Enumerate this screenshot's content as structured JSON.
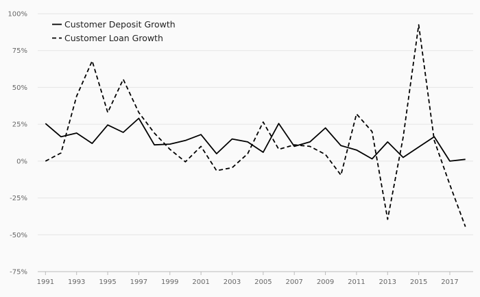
{
  "chart_data": {
    "type": "line",
    "title": "",
    "xlabel": "",
    "ylabel": "",
    "x": [
      1991,
      1992,
      1993,
      1994,
      1995,
      1996,
      1997,
      1998,
      1999,
      2000,
      2001,
      2002,
      2003,
      2004,
      2005,
      2006,
      2007,
      2008,
      2009,
      2010,
      2011,
      2012,
      2013,
      2014,
      2015,
      2016,
      2017,
      2018
    ],
    "xticks": [
      1991,
      1993,
      1995,
      1997,
      1999,
      2001,
      2003,
      2005,
      2007,
      2009,
      2011,
      2013,
      2015,
      2017
    ],
    "xlim": [
      1990.5,
      2018.5
    ],
    "ylim": [
      -75,
      100
    ],
    "yticks": [
      -75,
      -50,
      -25,
      0,
      25,
      50,
      75,
      100
    ],
    "ytick_labels": [
      "-75%",
      "-50%",
      "-25%",
      "0%",
      "25%",
      "50%",
      "75%",
      "100%"
    ],
    "grid": "horizontal",
    "legend_position": "top-left",
    "series": [
      {
        "name": "Customer Deposit Growth",
        "style": "solid",
        "color": "#000000",
        "values": [
          25.5,
          16.5,
          19,
          12,
          24.5,
          19.5,
          29,
          11,
          11.5,
          14,
          18,
          5,
          15,
          13,
          6,
          25.5,
          10,
          13,
          22.5,
          10.5,
          7.5,
          1.5,
          13,
          2.5,
          9.5,
          16.5,
          0,
          1.2
        ]
      },
      {
        "name": "Customer Loan Growth",
        "style": "dashed",
        "color": "#000000",
        "values": [
          0,
          5.5,
          44,
          68,
          33,
          55.5,
          33,
          19,
          8,
          -0.5,
          10,
          -6.5,
          -4.5,
          5,
          26.5,
          8,
          11,
          10,
          4.5,
          -9.5,
          32,
          20,
          -39.5,
          16,
          92.5,
          14,
          -16,
          -44.5
        ]
      }
    ]
  }
}
